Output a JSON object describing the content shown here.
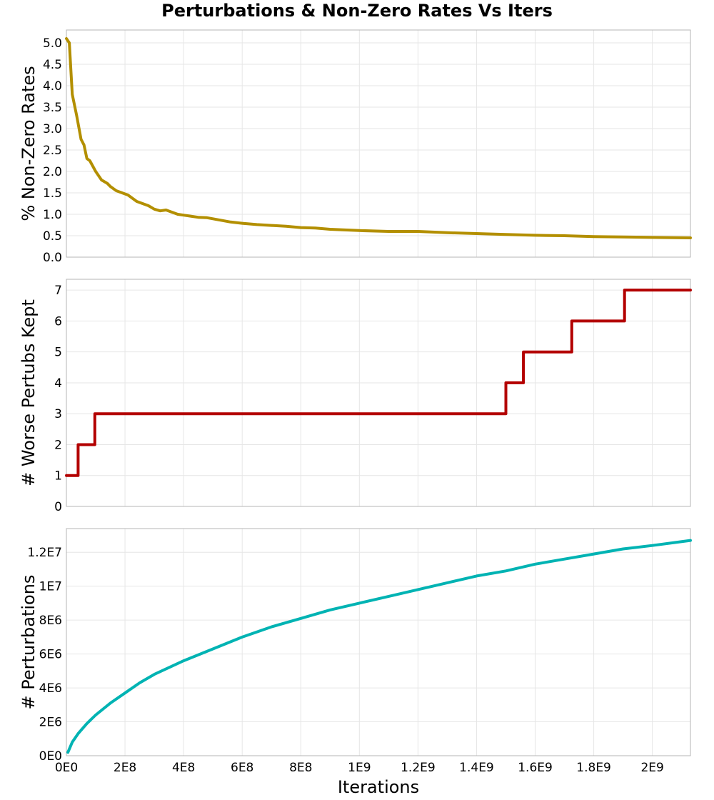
{
  "chart_data": {
    "type": "line",
    "title": "Perturbations & Non-Zero Rates Vs Iters",
    "xlabel": "Iterations",
    "xlim": [
      0,
      2130000000
    ],
    "x_ticks": [
      0,
      200000000,
      400000000,
      600000000,
      800000000,
      1000000000,
      1200000000,
      1400000000,
      1600000000,
      1800000000,
      2000000000
    ],
    "x_tick_labels": [
      "0E0",
      "2E8",
      "4E8",
      "6E8",
      "8E8",
      "1E9",
      "1.2E9",
      "1.4E9",
      "1.6E9",
      "1.8E9",
      "2E9"
    ],
    "grid": true,
    "panels": [
      {
        "ylabel": "% Non-Zero Rates",
        "ylim": [
          0,
          5.3
        ],
        "y_ticks": [
          0,
          0.5,
          1,
          1.5,
          2,
          2.5,
          3,
          3.5,
          4,
          4.5,
          5
        ],
        "y_tick_labels": [
          "0.0",
          "0.5",
          "1.0",
          "1.5",
          "2.0",
          "2.5",
          "3.0",
          "3.5",
          "4.0",
          "4.5",
          "5.0"
        ],
        "color": "#b38f00",
        "step": false,
        "x": [
          0,
          10000000,
          20000000,
          35000000,
          50000000,
          60000000,
          70000000,
          80000000,
          100000000,
          120000000,
          140000000,
          150000000,
          170000000,
          190000000,
          210000000,
          240000000,
          260000000,
          280000000,
          300000000,
          320000000,
          340000000,
          360000000,
          380000000,
          400000000,
          430000000,
          450000000,
          480000000,
          520000000,
          560000000,
          600000000,
          650000000,
          700000000,
          750000000,
          800000000,
          850000000,
          900000000,
          1000000000,
          1100000000,
          1200000000,
          1300000000,
          1400000000,
          1500000000,
          1600000000,
          1700000000,
          1800000000,
          1900000000,
          2000000000,
          2130000000
        ],
        "y": [
          5.1,
          5.0,
          3.8,
          3.3,
          2.75,
          2.62,
          2.3,
          2.25,
          2.0,
          1.8,
          1.72,
          1.65,
          1.55,
          1.5,
          1.45,
          1.3,
          1.25,
          1.2,
          1.12,
          1.08,
          1.1,
          1.05,
          1.0,
          0.98,
          0.95,
          0.93,
          0.92,
          0.87,
          0.82,
          0.79,
          0.76,
          0.74,
          0.72,
          0.69,
          0.68,
          0.65,
          0.62,
          0.6,
          0.6,
          0.57,
          0.55,
          0.53,
          0.51,
          0.5,
          0.48,
          0.47,
          0.46,
          0.45
        ]
      },
      {
        "ylabel": "# Worse Pertubs Kept",
        "ylim": [
          0,
          7.35
        ],
        "y_ticks": [
          0,
          1,
          2,
          3,
          4,
          5,
          6,
          7
        ],
        "y_tick_labels": [
          "0",
          "1",
          "2",
          "3",
          "4",
          "5",
          "6",
          "7"
        ],
        "color": "#b30000",
        "step": true,
        "x": [
          0,
          40000000,
          85000000,
          97000000,
          1482000000,
          1500000000,
          1550000000,
          1560000000,
          1710000000,
          1725000000,
          1895000000,
          1905000000,
          2130000000
        ],
        "y": [
          1,
          2,
          2,
          3,
          3,
          4,
          4,
          5,
          5,
          6,
          6,
          7,
          7
        ]
      },
      {
        "ylabel": "# Perturbations",
        "ylim": [
          0,
          13400000
        ],
        "y_ticks": [
          0,
          2000000,
          4000000,
          6000000,
          8000000,
          10000000,
          12000000
        ],
        "y_tick_labels": [
          "0E0",
          "2E6",
          "4E6",
          "6E6",
          "8E6",
          "1E7",
          "1.2E7"
        ],
        "color": "#00b3b3",
        "step": false,
        "x": [
          5000000,
          20000000,
          40000000,
          70000000,
          100000000,
          150000000,
          200000000,
          250000000,
          300000000,
          400000000,
          500000000,
          600000000,
          700000000,
          800000000,
          900000000,
          1000000000,
          1100000000,
          1200000000,
          1300000000,
          1400000000,
          1500000000,
          1600000000,
          1700000000,
          1800000000,
          1900000000,
          2000000000,
          2130000000
        ],
        "y": [
          200000,
          800000,
          1300000,
          1900000,
          2400000,
          3100000,
          3700000,
          4300000,
          4800000,
          5600000,
          6300000,
          7000000,
          7600000,
          8100000,
          8600000,
          9000000,
          9400000,
          9800000,
          10200000,
          10600000,
          10900000,
          11300000,
          11600000,
          11900000,
          12200000,
          12400000,
          12700000
        ]
      }
    ]
  }
}
